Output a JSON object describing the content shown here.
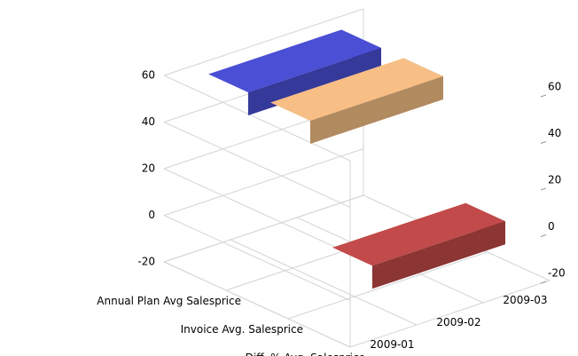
{
  "chart_data": {
    "type": "ribbon3d",
    "categories": [
      "2009-01",
      "2009-02",
      "2009-03"
    ],
    "series": [
      {
        "name": "Annual Plan Avg Salesprice",
        "color": "#4a4fd6",
        "values": [
          58,
          58,
          58
        ]
      },
      {
        "name": "Invoice Avg. Salesprice",
        "color": "#f7bf86",
        "values": [
          58,
          58,
          58
        ]
      },
      {
        "name": "Diff. % Avg. Salesprice",
        "color": "#c24a4a",
        "values": [
          8,
          8,
          8
        ],
        "axis": "y2"
      }
    ],
    "ylim": [
      -20,
      60
    ],
    "yticks": [
      -20,
      0,
      20,
      40,
      60
    ],
    "y2lim": [
      -20,
      60
    ],
    "y2ticks": [
      -20,
      0,
      20,
      40,
      60
    ],
    "grid": true
  }
}
